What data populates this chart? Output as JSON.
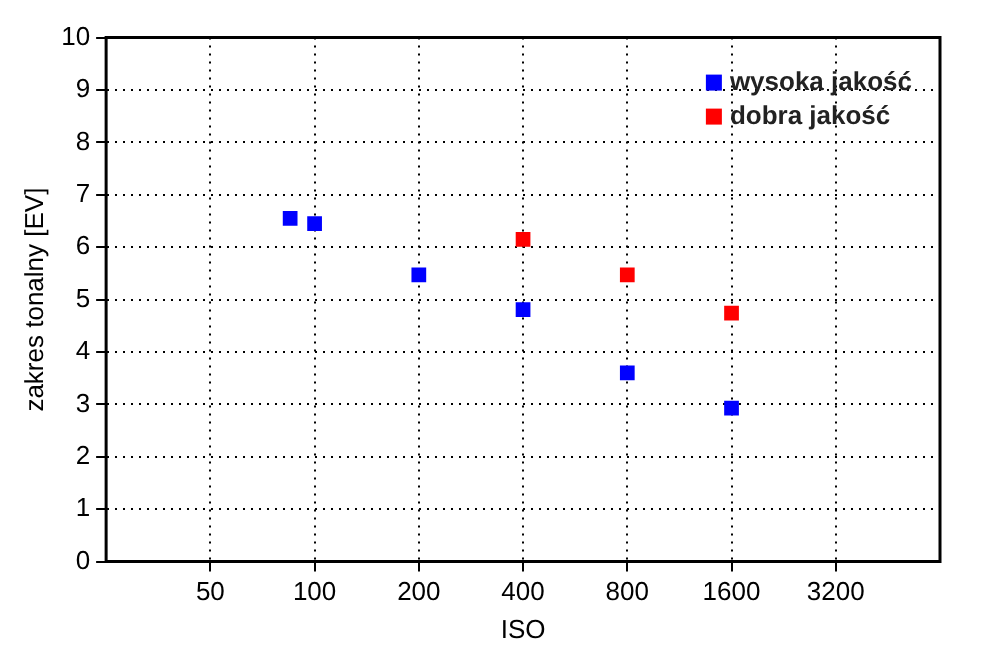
{
  "chart_data": {
    "type": "scatter",
    "xlabel": "ISO",
    "ylabel": "zakres tonalny [EV]",
    "log": "x",
    "xlim": [
      25,
      6400
    ],
    "xticks": [
      50,
      100,
      200,
      400,
      800,
      1600,
      3200
    ],
    "ylim": [
      0,
      10
    ],
    "yticks": [
      0,
      1,
      2,
      3,
      4,
      5,
      6,
      7,
      8,
      9,
      10
    ],
    "grid": true,
    "legend": "top right",
    "marker": "square",
    "series": [
      {
        "name": "wysoka jakość",
        "color": "#0000ff",
        "x": [
          85,
          100,
          200,
          400,
          800,
          1600
        ],
        "values": [
          6.55,
          6.45,
          5.47,
          4.81,
          3.6,
          2.93
        ]
      },
      {
        "name": "dobra jakość",
        "color": "#ff0000",
        "x": [
          400,
          800,
          1600
        ],
        "values": [
          6.15,
          5.47,
          4.74
        ]
      }
    ]
  }
}
